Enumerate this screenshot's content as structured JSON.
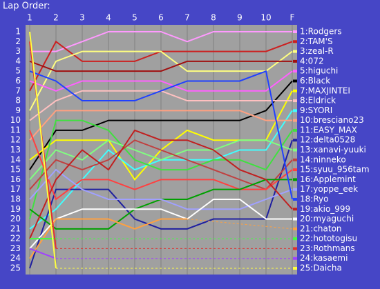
{
  "chart_data": {
    "type": "line",
    "title": "Lap Order:",
    "categories": [
      "1",
      "2",
      "3",
      "4",
      "5",
      "6",
      "7",
      "8",
      "9",
      "10",
      "F"
    ],
    "ylim": [
      25,
      1
    ],
    "yticks": [
      1,
      2,
      3,
      4,
      5,
      6,
      7,
      8,
      9,
      10,
      11,
      12,
      13,
      14,
      15,
      16,
      17,
      18,
      19,
      20,
      21,
      22,
      23,
      24,
      25
    ],
    "grid": true,
    "series": [
      {
        "name": "1:Rodgers",
        "color": "#ff99ff",
        "values": [
          3,
          3,
          2,
          1,
          1,
          1,
          2,
          1,
          1,
          1,
          1
        ]
      },
      {
        "name": "2:TAM'S",
        "color": "#cc2020",
        "values": [
          7,
          2,
          4,
          4,
          4,
          3,
          3,
          3,
          3,
          3,
          2
        ]
      },
      {
        "name": "3:zeal-R",
        "color": "#ffff80",
        "values": [
          9,
          4,
          3,
          3,
          3,
          3,
          5,
          5,
          5,
          5,
          3
        ]
      },
      {
        "name": "4:072",
        "color": "#a01010",
        "values": [
          4,
          5,
          5,
          5,
          5,
          5,
          4,
          4,
          4,
          4,
          4
        ]
      },
      {
        "name": "5:higuchi",
        "color": "#ff60ff",
        "values": [
          6,
          7,
          6,
          6,
          6,
          6,
          7,
          7,
          7,
          7,
          5
        ]
      },
      {
        "name": "6:Black",
        "color": "#000000",
        "values": [
          15,
          11,
          11,
          10,
          10,
          10,
          10,
          10,
          10,
          9,
          6
        ]
      },
      {
        "name": "7:MAXJINTEI",
        "color": "#ffff00",
        "values": [
          14,
          12,
          12,
          12,
          16,
          13,
          11,
          12,
          12,
          12,
          7
        ]
      },
      {
        "name": "8:Eldrick",
        "color": "#ffc0c0",
        "values": [
          10,
          8,
          7,
          7,
          7,
          7,
          8,
          8,
          8,
          8,
          8
        ]
      },
      {
        "name": "9:SYORI",
        "color": "#40ffff",
        "values": [
          21,
          19,
          16,
          13,
          15,
          14,
          14,
          14,
          13,
          13,
          9
        ]
      },
      {
        "name": "10:bresciano23",
        "color": "#ffa080",
        "values": [
          12,
          9,
          9,
          9,
          9,
          9,
          9,
          9,
          9,
          10,
          10
        ]
      },
      {
        "name": "11:EASY_MAX",
        "color": "#40e040",
        "values": [
          20,
          10,
          10,
          11,
          14,
          15,
          15,
          14,
          14,
          15,
          11
        ]
      },
      {
        "name": "12:delta0528",
        "color": "#2020a0",
        "values": [
          25,
          17,
          17,
          17,
          20,
          21,
          21,
          20,
          20,
          20,
          12
        ]
      },
      {
        "name": "13:xanavi-yuuki",
        "color": "#80ff80",
        "values": [
          16,
          13,
          14,
          12,
          13,
          14,
          13,
          13,
          12,
          12,
          13
        ]
      },
      {
        "name": "14:ninneko",
        "color": "#c04040",
        "values": [
          17,
          14,
          15,
          14,
          12,
          13,
          14,
          15,
          16,
          17,
          14
        ]
      },
      {
        "name": "15:syuu_956tam",
        "color": "#ff4040",
        "values": [
          11,
          18,
          16,
          16,
          17,
          16,
          16,
          16,
          17,
          17,
          15
        ]
      },
      {
        "name": "16:Applemint",
        "color": "#00a000",
        "values": [
          19,
          21,
          21,
          21,
          19,
          18,
          18,
          17,
          17,
          16,
          16
        ]
      },
      {
        "name": "17:yoppe_eek",
        "color": "#a0a0ff",
        "values": [
          18,
          15,
          17,
          18,
          18,
          18,
          19,
          19,
          19,
          18,
          17
        ]
      },
      {
        "name": "18:Ryo",
        "color": "#2040ff",
        "values": [
          5,
          6,
          8,
          8,
          8,
          7,
          6,
          6,
          6,
          5,
          18
        ]
      },
      {
        "name": "19:akio_999",
        "color": "#c02020",
        "values": [
          22,
          16,
          13,
          15,
          11,
          12,
          12,
          13,
          15,
          16,
          19
        ]
      },
      {
        "name": "20:myaguchi",
        "color": "#ffffff",
        "values": [
          23,
          20,
          19,
          19,
          19,
          19,
          20,
          18,
          18,
          20,
          20
        ]
      },
      {
        "name": "21:chaton",
        "color": "#ffa040",
        "values": [
          24,
          20,
          20,
          20,
          21,
          20,
          20,
          null,
          null,
          null,
          21
        ]
      },
      {
        "name": "22:hototogisu",
        "color": "#40ff40",
        "values": [
          22,
          22,
          null,
          null,
          null,
          null,
          null,
          null,
          null,
          null,
          22
        ]
      },
      {
        "name": "23:Rothmans",
        "color": "#e03030",
        "values": [
          2,
          23,
          null,
          null,
          null,
          null,
          null,
          null,
          null,
          null,
          23
        ]
      },
      {
        "name": "24:kasaemi",
        "color": "#a040ff",
        "values": [
          23,
          24,
          null,
          null,
          null,
          null,
          null,
          null,
          null,
          null,
          24
        ]
      },
      {
        "name": "25:Daicha",
        "color": "#ffff40",
        "values": [
          1,
          25,
          null,
          null,
          null,
          null,
          null,
          null,
          null,
          null,
          25
        ]
      }
    ]
  }
}
